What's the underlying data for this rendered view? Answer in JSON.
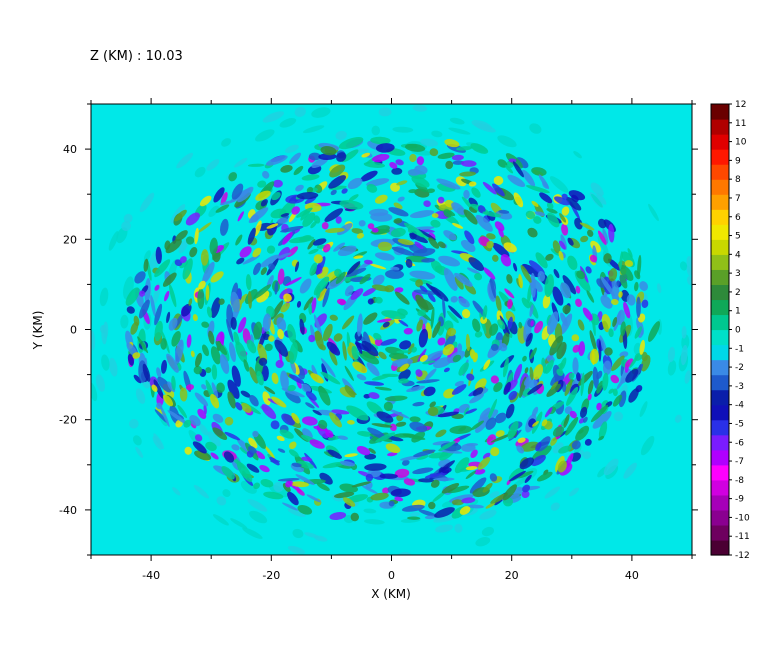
{
  "chart_data": {
    "type": "heatmap",
    "title": "Z (KM) : 10.03",
    "xlabel": "X (KM)",
    "ylabel": "Y (KM)",
    "xlim": [
      -50,
      50
    ],
    "ylim": [
      -50,
      50
    ],
    "xticks": [
      -40,
      -20,
      0,
      20,
      40
    ],
    "yticks": [
      -40,
      -20,
      0,
      20,
      40
    ],
    "grid": false,
    "colorbar": {
      "position": "right",
      "min": -12,
      "max": 12,
      "ticks": [
        12,
        11,
        10,
        9,
        8,
        7,
        6,
        5,
        4,
        3,
        2,
        1,
        0,
        -1,
        -2,
        -3,
        -4,
        -5,
        -6,
        -7,
        -8,
        -9,
        -10,
        -11,
        -12
      ],
      "colors": [
        "#4b0033",
        "#6e005f",
        "#8a0090",
        "#a600b8",
        "#d000e0",
        "#ff00ff",
        "#b000ff",
        "#7a1cff",
        "#2a30e8",
        "#1010b8",
        "#0a1eaa",
        "#1e5acc",
        "#3a8ae6",
        "#00d8e8",
        "#00e0c8",
        "#00c890",
        "#10a858",
        "#2e8a3a",
        "#5aa028",
        "#90c018",
        "#c8d800",
        "#f0e800",
        "#ffd200",
        "#ffa000",
        "#ff7800",
        "#ff4800",
        "#ff1800",
        "#e00000",
        "#b00000",
        "#6a0000"
      ]
    },
    "field_description": "Perturbation field with swirling bands of positive (green-yellow) and negative (blue-violet) values inside a roughly circular region of radius ~45 km; background near 0 (cyan)."
  }
}
